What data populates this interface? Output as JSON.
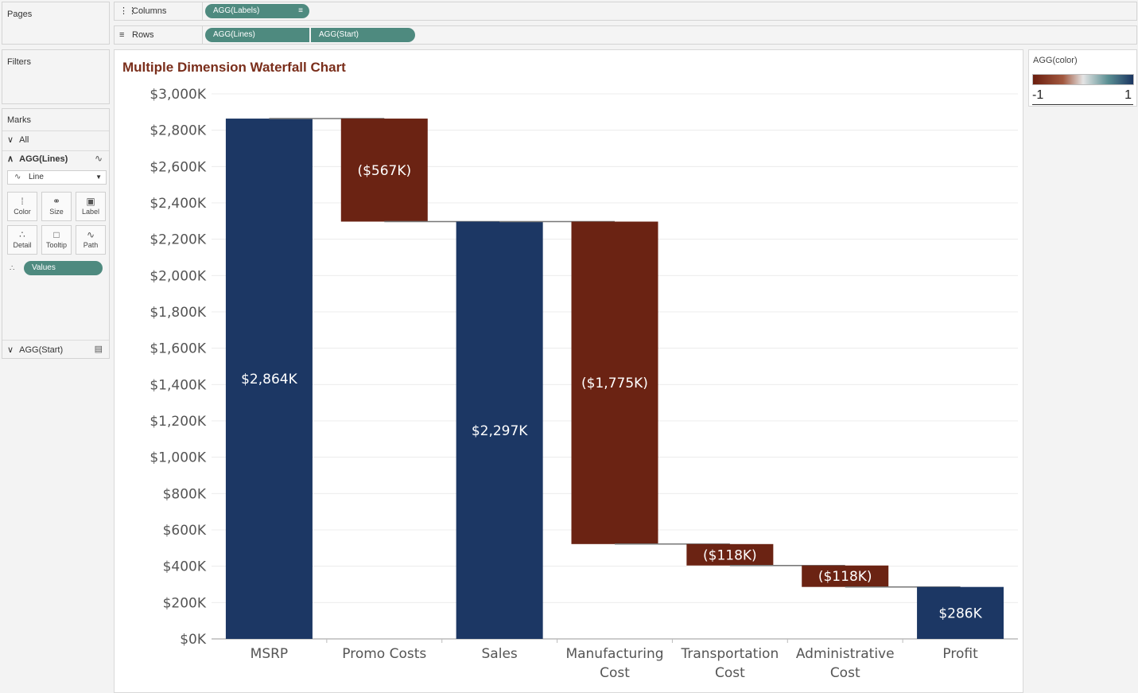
{
  "left_panel": {
    "pages": "Pages",
    "filters": "Filters",
    "marks": {
      "title": "Marks",
      "all": "All",
      "lines_card": "AGG(Lines)",
      "mark_type": "Line",
      "buttons": [
        "Color",
        "Size",
        "Label",
        "Detail",
        "Tooltip",
        "Path"
      ],
      "detail_pill": "Values",
      "start_card": "AGG(Start)"
    }
  },
  "shelves": {
    "columns_label": "Columns",
    "columns_pills": [
      "AGG(Labels)"
    ],
    "rows_label": "Rows",
    "rows_pills": [
      "AGG(Lines)",
      "AGG(Start)"
    ]
  },
  "legend": {
    "title": "AGG(color)",
    "min": "-1",
    "max": "1"
  },
  "chart_data": {
    "type": "waterfall",
    "title": "Multiple Dimension Waterfall Chart",
    "categories": [
      "MSRP",
      "Promo Costs",
      "Sales",
      "Manufacturing Cost",
      "Transportation Cost",
      "Administrative Cost",
      "Profit"
    ],
    "category_lines": [
      [
        "MSRP"
      ],
      [
        "Promo Costs"
      ],
      [
        "Sales"
      ],
      [
        "Manufacturing",
        "Cost"
      ],
      [
        "Transportation",
        "Cost"
      ],
      [
        "Administrative",
        "Cost"
      ],
      [
        "Profit"
      ]
    ],
    "bars": [
      {
        "start": 0,
        "end": 2864,
        "label": "$2,864K",
        "kind": "total"
      },
      {
        "start": 2297,
        "end": 2864,
        "label": "($567K)",
        "kind": "decrease"
      },
      {
        "start": 0,
        "end": 2297,
        "label": "$2,297K",
        "kind": "total"
      },
      {
        "start": 522,
        "end": 2297,
        "label": "($1,775K)",
        "kind": "decrease"
      },
      {
        "start": 404,
        "end": 522,
        "label": "($118K)",
        "kind": "decrease"
      },
      {
        "start": 286,
        "end": 404,
        "label": "($118K)",
        "kind": "decrease"
      },
      {
        "start": 0,
        "end": 286,
        "label": "$286K",
        "kind": "total"
      }
    ],
    "ylim": [
      0,
      3000
    ],
    "yticks": [
      "$0K",
      "$200K",
      "$400K",
      "$600K",
      "$800K",
      "$1,000K",
      "$1,200K",
      "$1,400K",
      "$1,600K",
      "$1,800K",
      "$2,000K",
      "$2,200K",
      "$2,400K",
      "$2,600K",
      "$2,800K",
      "$3,000K"
    ],
    "ytick_values": [
      0,
      200,
      400,
      600,
      800,
      1000,
      1200,
      1400,
      1600,
      1800,
      2000,
      2200,
      2400,
      2600,
      2800,
      3000
    ],
    "colors": {
      "total": "#1c3764",
      "decrease": "#6b2313",
      "connector": "#777777",
      "grid": "#ececec"
    },
    "grid": true
  }
}
